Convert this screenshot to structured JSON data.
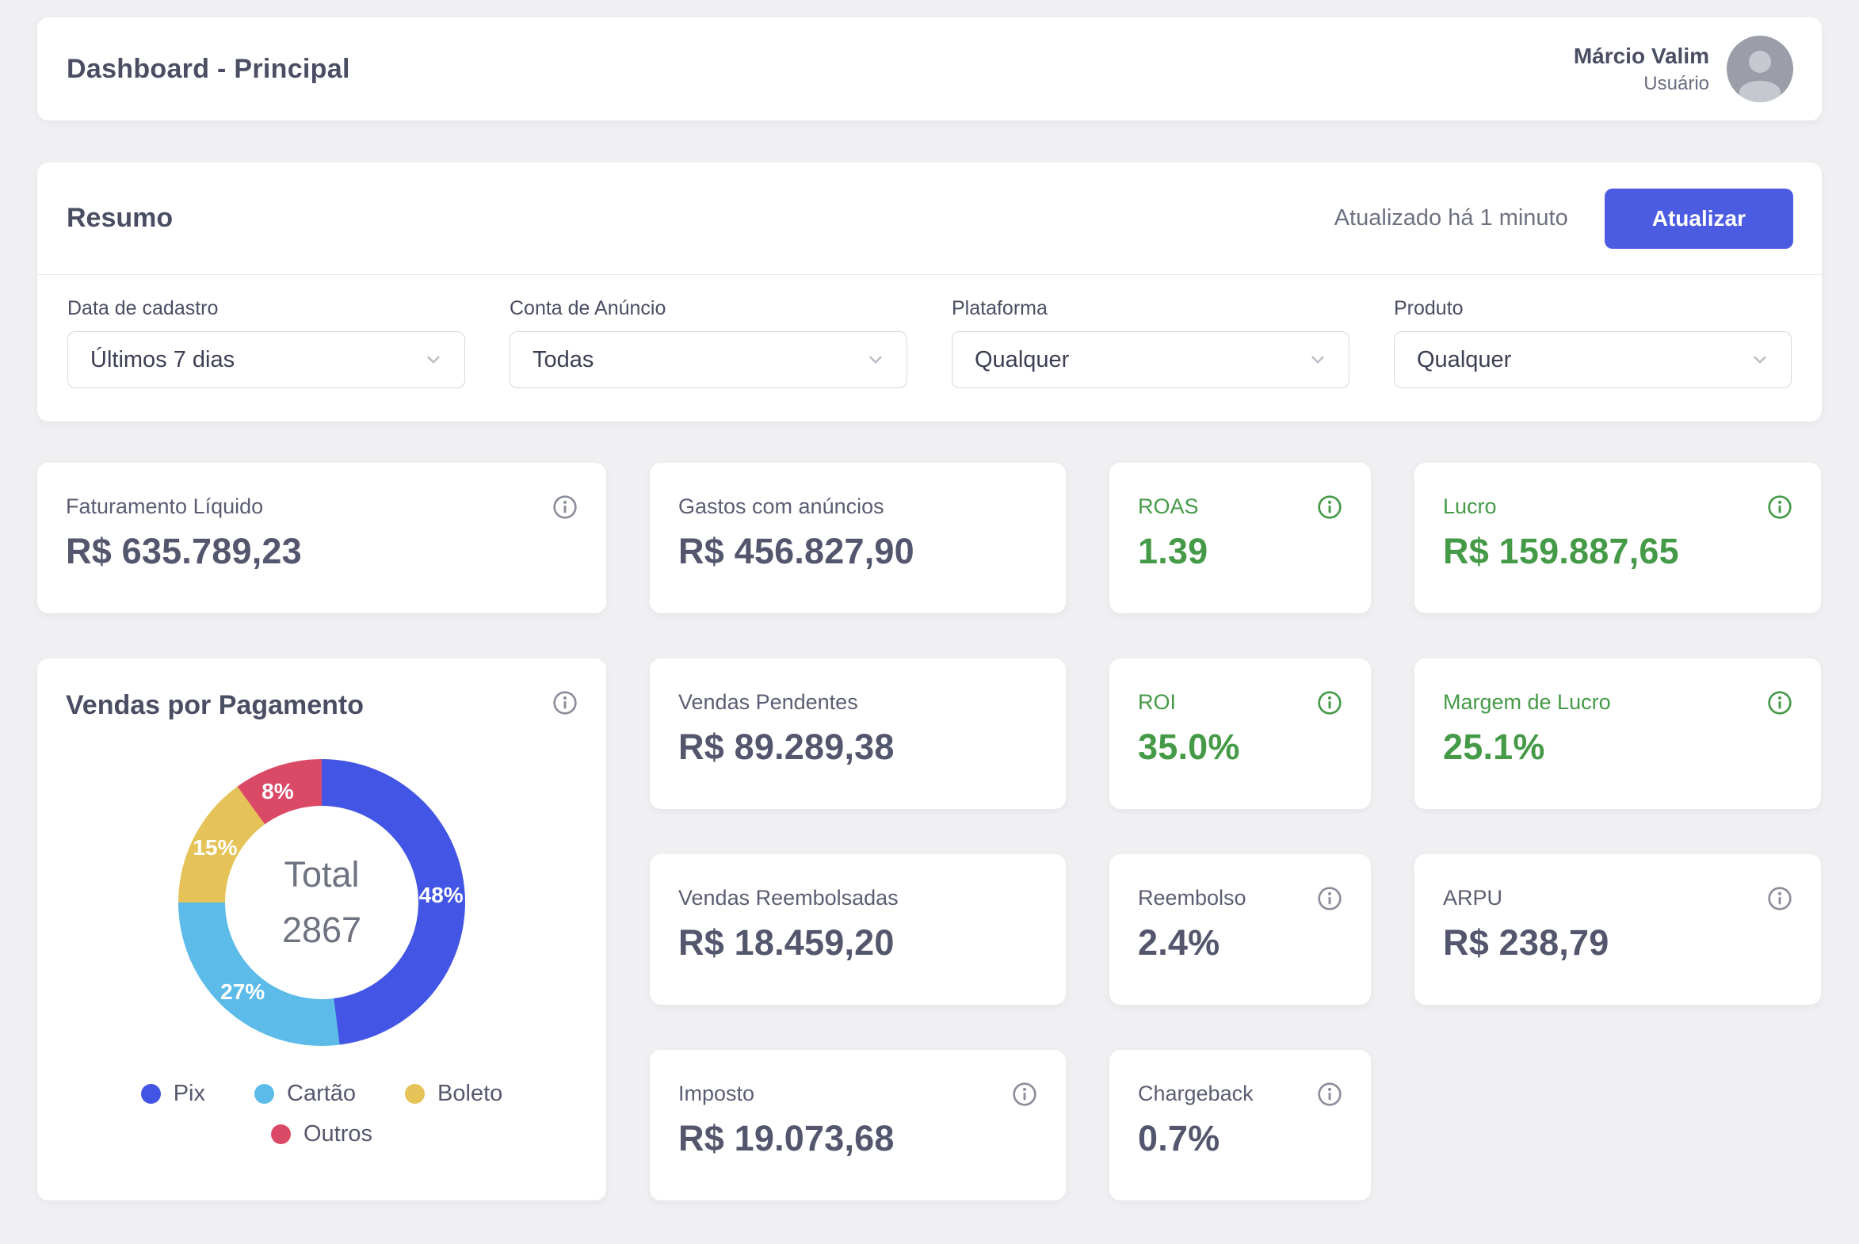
{
  "header": {
    "title": "Dashboard - Principal",
    "user_name": "Márcio Valim",
    "user_role": "Usuário"
  },
  "resumo": {
    "title": "Resumo",
    "updated_text": "Atualizado há 1 minuto",
    "refresh_label": "Atualizar",
    "filters": [
      {
        "label": "Data de cadastro",
        "value": "Últimos 7 dias"
      },
      {
        "label": "Conta de Anúncio",
        "value": "Todas"
      },
      {
        "label": "Plataforma",
        "value": "Qualquer"
      },
      {
        "label": "Produto",
        "value": "Qualquer"
      }
    ]
  },
  "cards": [
    {
      "label": "Faturamento Líquido",
      "value": "R$ 635.789,23",
      "accent": "slate",
      "info": true
    },
    {
      "label": "Gastos com anúncios",
      "value": "R$ 456.827,90",
      "accent": "slate",
      "info": false
    },
    {
      "label": "ROAS",
      "value": "1.39",
      "accent": "green",
      "info": true
    },
    {
      "label": "Lucro",
      "value": "R$ 159.887,65",
      "accent": "green",
      "info": true
    },
    {
      "label": "Vendas Pendentes",
      "value": "R$ 89.289,38",
      "accent": "slate",
      "info": false
    },
    {
      "label": "ROI",
      "value": "35.0%",
      "accent": "green",
      "info": true
    },
    {
      "label": "Margem de Lucro",
      "value": "25.1%",
      "accent": "green",
      "info": true
    },
    {
      "label": "Vendas Reembolsadas",
      "value": "R$ 18.459,20",
      "accent": "slate",
      "info": false
    },
    {
      "label": "Reembolso",
      "value": "2.4%",
      "accent": "slate",
      "info": true
    },
    {
      "label": "ARPU",
      "value": "R$ 238,79",
      "accent": "slate",
      "info": true
    },
    {
      "label": "Imposto",
      "value": "R$ 19.073,68",
      "accent": "slate",
      "info": true
    },
    {
      "label": "Chargeback",
      "value": "0.7%",
      "accent": "slate",
      "info": true
    }
  ],
  "chart_data": {
    "type": "pie",
    "title": "Vendas por Pagamento",
    "center_label": "Total",
    "center_value": "2867",
    "categories": [
      "Pix",
      "Cartão",
      "Boleto",
      "Outros"
    ],
    "values": [
      48,
      27,
      15,
      8
    ],
    "unit": "%",
    "colors": [
      "#4355e4",
      "#5cbbe9",
      "#e5c358",
      "#da4a67"
    ],
    "legend_position": "bottom",
    "start_angle_deg": 0,
    "direction": "clockwise"
  },
  "colors": {
    "background": "#f0f0f2",
    "card": "#ffffff",
    "text_dark": "#4b4e63",
    "text_muted": "#6e7180",
    "green_accent": "#459a47",
    "button_blue": "#4c5ce2"
  }
}
